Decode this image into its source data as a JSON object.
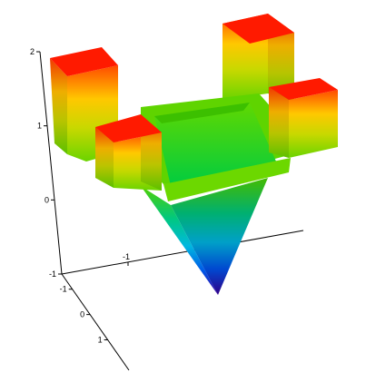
{
  "chart_data": {
    "type": "surface3d",
    "title": "",
    "xlabel": "",
    "ylabel": "",
    "zlabel": "",
    "colormap": [
      "#3a00a8",
      "#0050ff",
      "#00d0e0",
      "#20d020",
      "#80e000",
      "#ffe000",
      "#ff8000",
      "#ff0000"
    ],
    "z_axis": {
      "range": [
        -1,
        2
      ],
      "ticks": [
        2,
        1,
        0,
        -1
      ],
      "tick_labels": [
        "2",
        "1",
        "0",
        "-1"
      ]
    },
    "x_axis": {
      "ticks": [
        -1
      ],
      "tick_labels": [
        "-1"
      ]
    },
    "y_axis": {
      "ticks": [
        -1,
        0,
        1
      ],
      "tick_labels": [
        "-1",
        "0",
        "1"
      ]
    },
    "surface_levels": {
      "pillar_top": 2,
      "side_block_top": 1,
      "plateau": 0,
      "funnel_bottom": -1
    }
  }
}
